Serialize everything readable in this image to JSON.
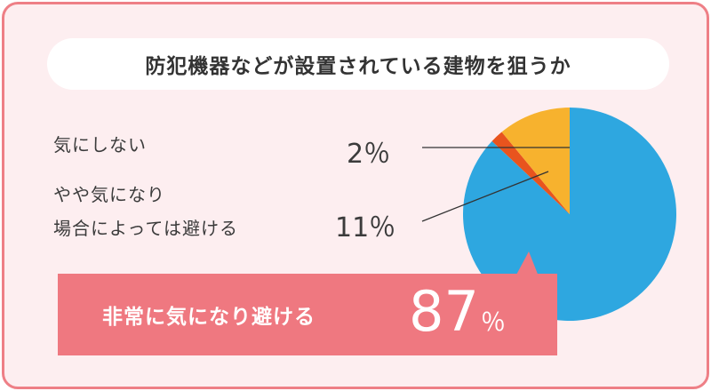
{
  "title": "防犯機器などが設置されている建物を狙うか",
  "legend": {
    "label_1": "気にしない",
    "label_2_line1": "やや気になり",
    "label_2_line2": "場合によっては避ける",
    "pct_1": "2％",
    "pct_2": "11％"
  },
  "callout": {
    "label": "非常に気になり避ける",
    "value": "87",
    "unit": "％"
  },
  "chart_data": {
    "type": "pie",
    "title": "防犯機器などが設置されている建物を狙うか",
    "slices": [
      {
        "label": "非常に気になり避ける",
        "value": 87,
        "color": "#2ea7e0"
      },
      {
        "label": "気にしない",
        "value": 2,
        "color": "#e8541e"
      },
      {
        "label": "やや気になり場合によっては避ける",
        "value": 11,
        "color": "#f7b22e"
      }
    ],
    "legend_position": "left"
  },
  "colors": {
    "card_bg": "#fdeef0",
    "card_border": "#ee7f86",
    "callout_bg": "#ef7880"
  }
}
